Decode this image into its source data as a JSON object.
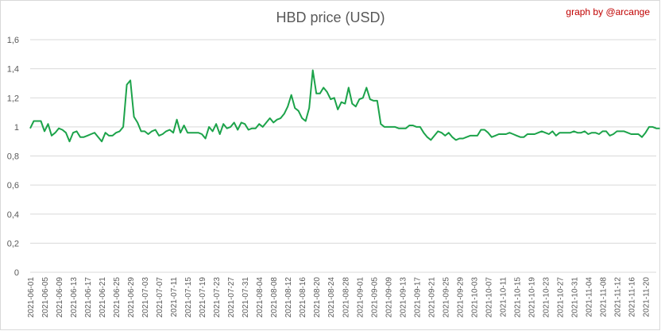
{
  "chart_data": {
    "type": "line",
    "title": "HBD price (USD)",
    "annotation": "graph by @arcange",
    "xlabel": "",
    "ylabel": "",
    "ylim": [
      0,
      1.6
    ],
    "yticks": [
      "0",
      "0,2",
      "0,4",
      "0,6",
      "0,8",
      "1",
      "1,2",
      "1,4",
      "1,6"
    ],
    "grid": "horizontal",
    "legend": "none",
    "color": "#1ca34a",
    "xtick_labels": [
      "2021-06-01",
      "2021-06-05",
      "2021-06-09",
      "2021-06-13",
      "2021-06-17",
      "2021-06-21",
      "2021-06-25",
      "2021-06-29",
      "2021-07-03",
      "2021-07-07",
      "2021-07-11",
      "2021-07-15",
      "2021-07-19",
      "2021-07-23",
      "2021-07-27",
      "2021-07-31",
      "2021-08-04",
      "2021-08-08",
      "2021-08-12",
      "2021-08-16",
      "2021-08-20",
      "2021-08-24",
      "2021-08-28",
      "2021-09-01",
      "2021-09-05",
      "2021-09-09",
      "2021-09-13",
      "2021-09-17",
      "2021-09-21",
      "2021-09-25",
      "2021-09-29",
      "2021-10-03",
      "2021-10-07",
      "2021-10-11",
      "2021-10-15",
      "2021-10-19",
      "2021-10-23",
      "2021-10-27",
      "2021-10-31",
      "2021-11-04",
      "2021-11-08",
      "2021-11-12",
      "2021-11-16",
      "2021-11-20"
    ],
    "x_start": "2021-06-01",
    "x_end": "2021-11-23",
    "series": [
      {
        "values": [
          0.99,
          1.04,
          1.04,
          1.04,
          0.97,
          1.02,
          0.94,
          0.96,
          0.99,
          0.98,
          0.96,
          0.9,
          0.96,
          0.97,
          0.93,
          0.93,
          0.94,
          0.95,
          0.96,
          0.93,
          0.9,
          0.96,
          0.94,
          0.94,
          0.96,
          0.97,
          1.0,
          1.29,
          1.32,
          1.07,
          1.03,
          0.97,
          0.97,
          0.95,
          0.97,
          0.98,
          0.94,
          0.95,
          0.97,
          0.98,
          0.96,
          1.05,
          0.96,
          1.01,
          0.96,
          0.96,
          0.96,
          0.96,
          0.95,
          0.92,
          1.0,
          0.97,
          1.02,
          0.95,
          1.02,
          0.99,
          1.0,
          1.03,
          0.98,
          1.03,
          1.02,
          0.98,
          0.99,
          0.99,
          1.02,
          1.0,
          1.03,
          1.06,
          1.03,
          1.05,
          1.06,
          1.09,
          1.14,
          1.22,
          1.13,
          1.11,
          1.06,
          1.04,
          1.13,
          1.39,
          1.23,
          1.23,
          1.27,
          1.24,
          1.19,
          1.2,
          1.12,
          1.17,
          1.16,
          1.27,
          1.16,
          1.14,
          1.19,
          1.2,
          1.27,
          1.19,
          1.18,
          1.18,
          1.02,
          1.0,
          1.0,
          1.0,
          1.0,
          0.99,
          0.99,
          0.99,
          1.01,
          1.01,
          1.0,
          1.0,
          0.96,
          0.93,
          0.91,
          0.94,
          0.97,
          0.96,
          0.94,
          0.96,
          0.93,
          0.91,
          0.92,
          0.92,
          0.93,
          0.94,
          0.94,
          0.94,
          0.98,
          0.98,
          0.96,
          0.93,
          0.94,
          0.95,
          0.95,
          0.95,
          0.96,
          0.95,
          0.94,
          0.93,
          0.93,
          0.95,
          0.95,
          0.95,
          0.96,
          0.97,
          0.96,
          0.95,
          0.97,
          0.94,
          0.96,
          0.96,
          0.96,
          0.96,
          0.97,
          0.96,
          0.96,
          0.97,
          0.95,
          0.96,
          0.96,
          0.95,
          0.97,
          0.97,
          0.94,
          0.95,
          0.97,
          0.97,
          0.97,
          0.96,
          0.95,
          0.95,
          0.95,
          0.93,
          0.96,
          1.0,
          1.0,
          0.99,
          0.99
        ]
      }
    ]
  }
}
